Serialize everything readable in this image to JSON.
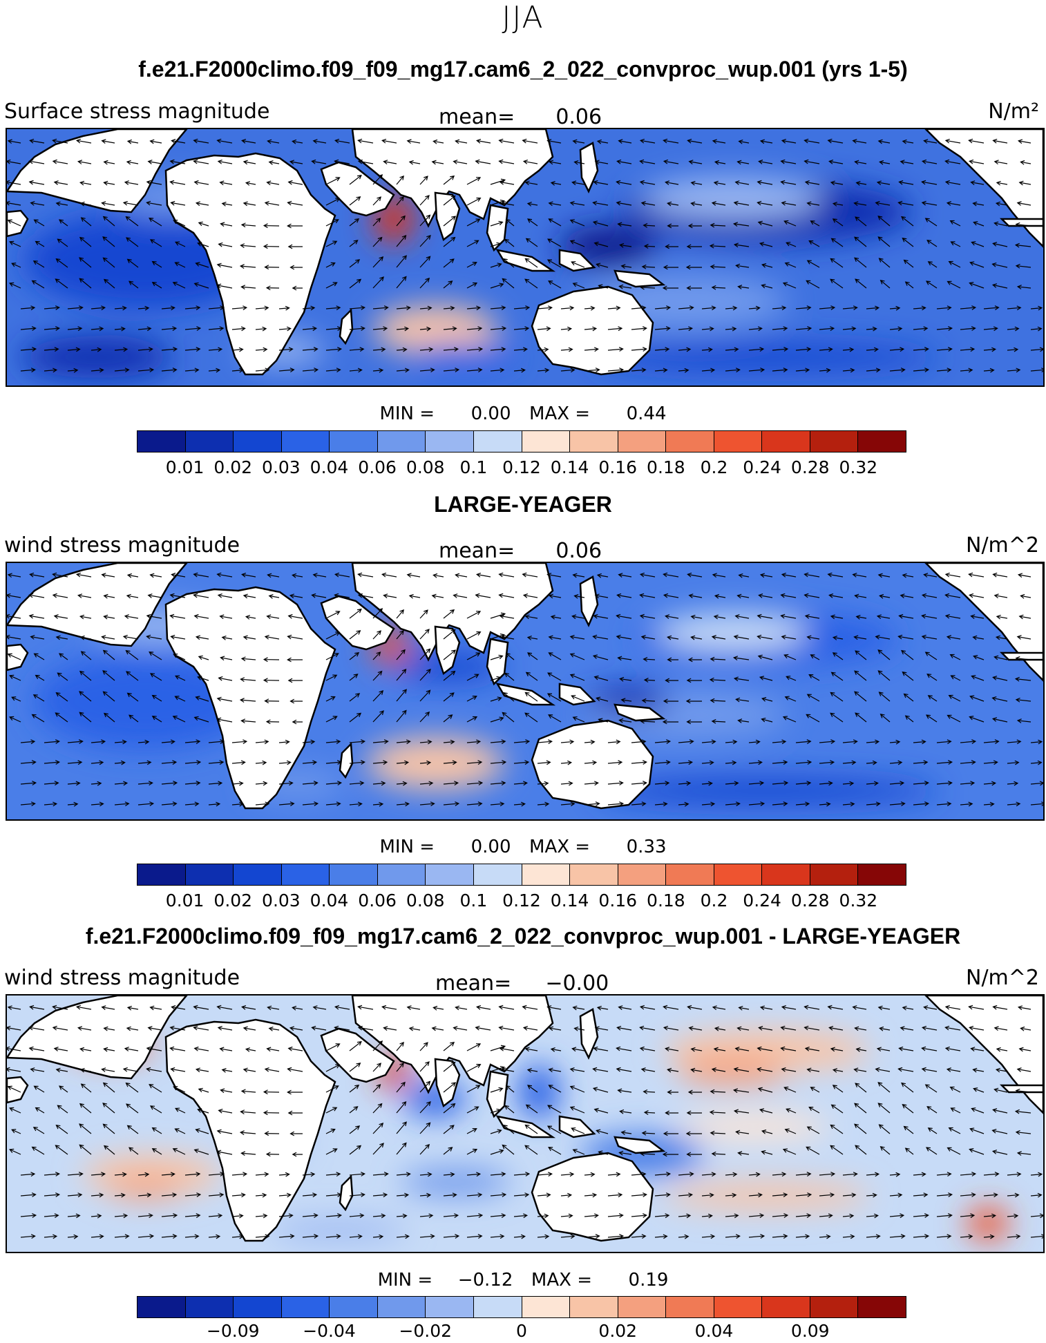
{
  "season_title": "JJA",
  "colors": {
    "land": "#ffffff",
    "coast": "#000000",
    "palette": [
      "#0a1a8c",
      "#0d2fb0",
      "#1346d1",
      "#2a62e6",
      "#4a7ee8",
      "#7099ec",
      "#9ab7f2",
      "#c7dbf7",
      "#fde5d5",
      "#f8c4a7",
      "#f4a07f",
      "#f07a55",
      "#ee5430",
      "#d9361c",
      "#b4200e",
      "#860606"
    ]
  },
  "panels": [
    {
      "title": "f.e21.F2000climo.f09_f09_mg17.cam6_2_022_convproc_wup.001 (yrs 1-5)",
      "variable": "Surface stress magnitude",
      "mean_label": "mean=",
      "mean_value": "0.06",
      "units": "N/m²",
      "min_label": "MIN =",
      "min_value": "0.00",
      "max_label": "MAX =",
      "max_value": "0.44",
      "colorbar_ticks": [
        "0.01",
        "0.02",
        "0.03",
        "0.04",
        "0.06",
        "0.08",
        "0.1",
        "0.12",
        "0.14",
        "0.16",
        "0.18",
        "0.2",
        "0.24",
        "0.28",
        "0.32"
      ]
    },
    {
      "title": "LARGE-YEAGER",
      "variable": "wind stress magnitude",
      "mean_label": "mean=",
      "mean_value": "0.06",
      "units": "N/m^2",
      "min_label": "MIN =",
      "min_value": "0.00",
      "max_label": "MAX =",
      "max_value": "0.33",
      "colorbar_ticks": [
        "0.01",
        "0.02",
        "0.03",
        "0.04",
        "0.06",
        "0.08",
        "0.1",
        "0.12",
        "0.14",
        "0.16",
        "0.18",
        "0.2",
        "0.24",
        "0.28",
        "0.32"
      ]
    },
    {
      "title": "f.e21.F2000climo.f09_f09_mg17.cam6_2_022_convproc_wup.001 - LARGE-YEAGER",
      "variable": "wind stress magnitude",
      "mean_label": "mean=",
      "mean_value": "−0.00",
      "units": "N/m^2",
      "min_label": "MIN =",
      "min_value": "−0.12",
      "max_label": "MAX =",
      "max_value": "0.19",
      "colorbar_ticks": [
        "",
        "−0.09",
        "",
        "−0.04",
        "",
        "−0.02",
        "",
        "0",
        "",
        "0.02",
        "",
        "0.04",
        "",
        "0.09",
        ""
      ]
    }
  ]
}
